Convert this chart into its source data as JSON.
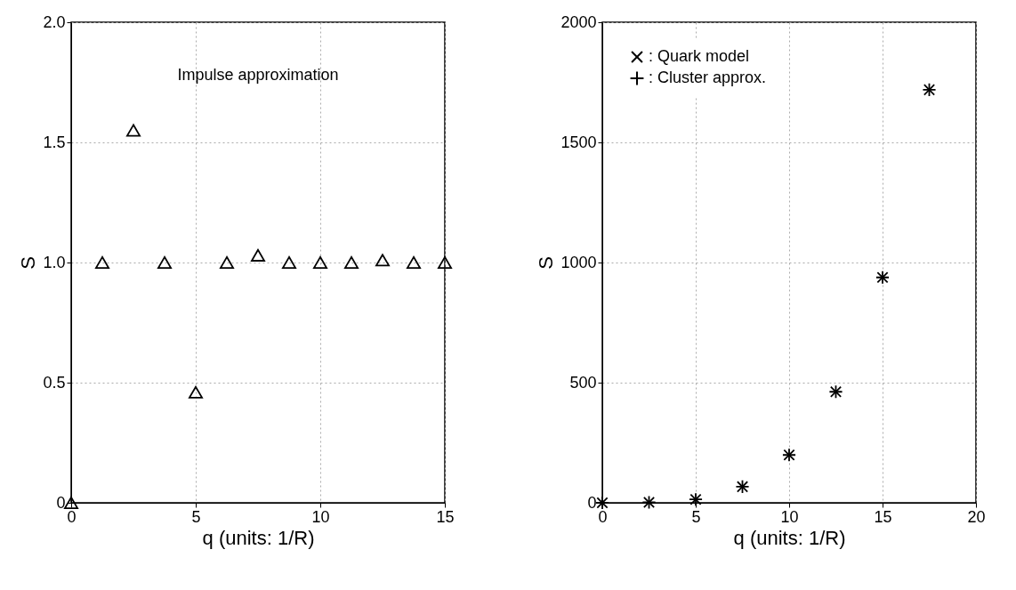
{
  "chart_data": [
    {
      "type": "scatter",
      "xlabel": "q  (units: 1/R)",
      "ylabel": "S",
      "annotations": [
        "Impulse approximation"
      ],
      "x": [
        0,
        1.25,
        2.5,
        3.75,
        5,
        6.25,
        7.5,
        8.75,
        10,
        11.25,
        12.5,
        13.75,
        15
      ],
      "series": [
        {
          "color": "#000000",
          "marker": "triangle",
          "values": [
            0,
            1.0,
            1.55,
            1.0,
            0.46,
            1.0,
            1.03,
            1.0,
            1.0,
            1.0,
            1.01,
            1.0,
            1.0
          ]
        }
      ],
      "xlim": [
        0,
        15
      ],
      "xticks": [
        0,
        5,
        10,
        15
      ],
      "ylim": [
        0,
        2
      ],
      "yticks": [
        0,
        0.5,
        {
          "value": 1,
          "label": "1.0"
        },
        1.5,
        {
          "value": 2,
          "label": "2.0"
        }
      ],
      "grid": true
    },
    {
      "type": "scatter",
      "xlabel": "q  (units: 1/R)",
      "ylabel": "S",
      "x": [
        0,
        2.5,
        5,
        7.5,
        10,
        12.5,
        15,
        17.5
      ],
      "series": [
        {
          "name": ": Quark model",
          "color": "#000000",
          "marker": "x",
          "values": [
            0,
            2,
            14,
            67,
            199,
            462,
            938,
            1719
          ]
        },
        {
          "name": ": Cluster approx.",
          "color": "#000000",
          "marker": "cross",
          "values": [
            0,
            2,
            14,
            67,
            199,
            462,
            938,
            1719
          ]
        }
      ],
      "xlim": [
        0,
        20
      ],
      "xticks": [
        0,
        5,
        10,
        15,
        20
      ],
      "ylim": [
        0,
        2000
      ],
      "yticks": [
        0,
        500,
        1000,
        1500,
        2000
      ],
      "grid": true,
      "legend": "top left"
    }
  ]
}
